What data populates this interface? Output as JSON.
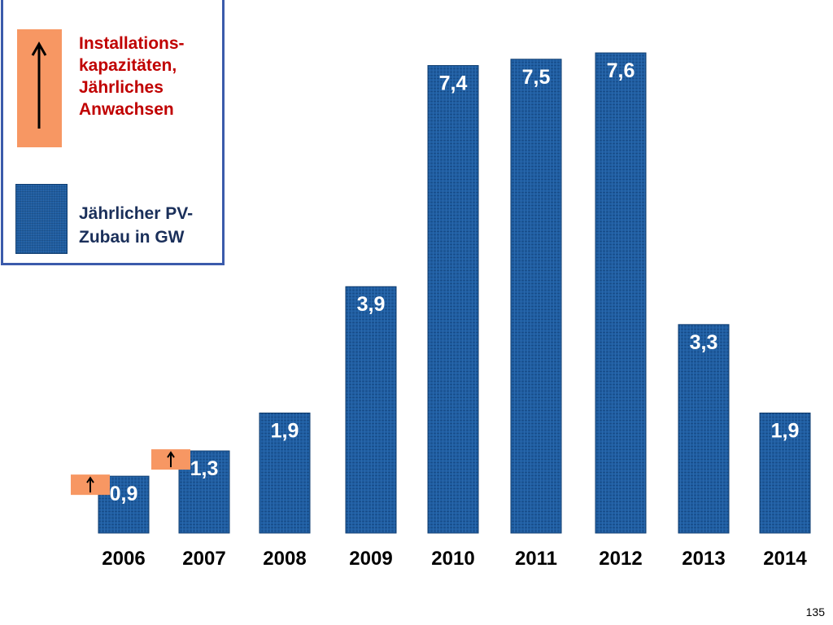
{
  "chart_data": {
    "type": "bar",
    "title": "",
    "xlabel": "",
    "ylabel": "",
    "categories": [
      "2006",
      "2007",
      "2008",
      "2009",
      "2010",
      "2011",
      "2012",
      "2013",
      "2014"
    ],
    "values": [
      0.9,
      1.3,
      1.9,
      3.9,
      7.4,
      7.5,
      7.6,
      3.3,
      1.9
    ],
    "value_labels": [
      "0,9",
      "1,3",
      "1,9",
      "3,9",
      "7,4",
      "7,5",
      "7,6",
      "3,3",
      "1,9"
    ],
    "growth_markers": [
      {
        "category": "2006",
        "arrow": "up"
      },
      {
        "category": "2007",
        "arrow": "up"
      }
    ],
    "ylim": [
      0,
      7.6
    ],
    "grid": false,
    "legend_position": "top-left",
    "colors": {
      "bar": "#1f5da1",
      "bar_edge": "#0f3d70",
      "growth_marker": "#f79763",
      "legend_border": "#3b5bab",
      "legend_red_text": "#c00000",
      "legend_blue_text": "#1a2f5a"
    }
  },
  "legend": {
    "growth_label": "Installations-\nkapazitäten,\nJährliches\nAnwachsen",
    "bar_label": "Jährlicher PV-\nZubau in GW",
    "growth_icon": "up-arrow-icon"
  },
  "page": {
    "number": "135"
  }
}
